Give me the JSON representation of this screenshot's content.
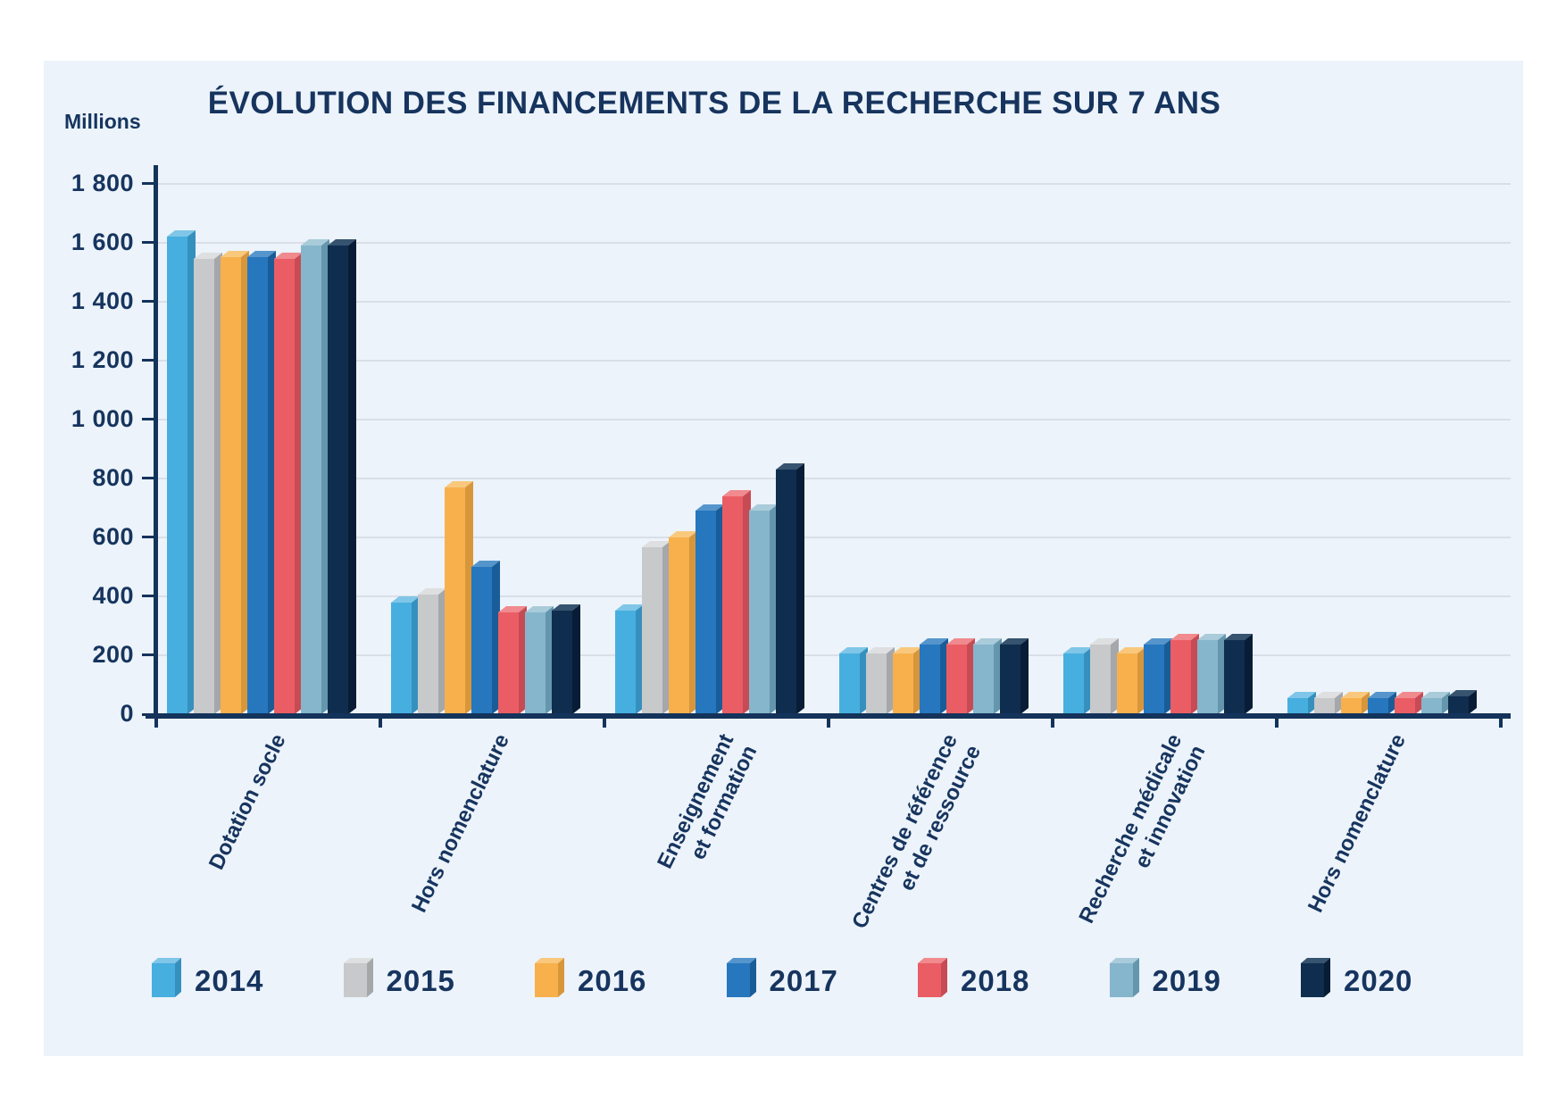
{
  "title": "ÉVOLUTION DES FINANCEMENTS DE LA RECHERCHE SUR 7 ANS",
  "chart_data": {
    "type": "bar",
    "title": "ÉVOLUTION DES FINANCEMENTS DE LA RECHERCHE SUR 7 ANS",
    "ylabel": "Millions",
    "ylim": [
      0,
      1800
    ],
    "y_tick_step": 200,
    "y_ticks": {
      "values": [
        0,
        200,
        400,
        600,
        800,
        1000,
        1200,
        1400,
        1600,
        1800
      ],
      "labels": [
        "0",
        "200",
        "400",
        "600",
        "800",
        "1 000",
        "1 200",
        "1 400",
        "1 600",
        "1 800"
      ]
    },
    "grid": true,
    "legend_position": "bottom",
    "categories": [
      "Dotation socle",
      "Hors nomenclature",
      "Enseignement et formation",
      "Centres de référence et de ressource",
      "Recherche médicale et innovation",
      "Hors nomenclature"
    ],
    "category_lines": [
      [
        "Dotation socle"
      ],
      [
        "Hors nomenclature"
      ],
      [
        "Enseignement",
        "et formation"
      ],
      [
        "Centres de référence",
        "et de ressource"
      ],
      [
        "Recherche médicale",
        "et innovation"
      ],
      [
        "Hors nomenclature"
      ]
    ],
    "series": [
      {
        "name": "2014",
        "color": "#47AFDF",
        "color_top": "#7FC6E8",
        "color_side": "#3690BD",
        "values": [
          1620,
          380,
          350,
          205,
          205,
          55
        ]
      },
      {
        "name": "2015",
        "color": "#C8C9CB",
        "color_top": "#DEDFE1",
        "color_side": "#A5A7AA",
        "values": [
          1545,
          405,
          565,
          205,
          235,
          55
        ]
      },
      {
        "name": "2016",
        "color": "#F7B04C",
        "color_top": "#F9C87D",
        "color_side": "#D8963B",
        "values": [
          1550,
          770,
          600,
          205,
          205,
          55
        ]
      },
      {
        "name": "2017",
        "color": "#2677BE",
        "color_top": "#5595CC",
        "color_side": "#1A5C98",
        "values": [
          1550,
          500,
          690,
          235,
          235,
          55
        ]
      },
      {
        "name": "2018",
        "color": "#EA5D64",
        "color_top": "#F08A8E",
        "color_side": "#C74B54",
        "values": [
          1545,
          345,
          740,
          235,
          250,
          55
        ]
      },
      {
        "name": "2019",
        "color": "#85B6CC",
        "color_top": "#A9CBDA",
        "color_side": "#6497AD",
        "values": [
          1590,
          345,
          690,
          235,
          250,
          55
        ]
      },
      {
        "name": "2020",
        "color": "#0F2D4F",
        "color_top": "#36536F",
        "color_side": "#081D35",
        "values": [
          1590,
          350,
          830,
          235,
          250,
          60
        ]
      }
    ]
  },
  "style": {
    "background": "#FFFFFF",
    "panel_background": "#ECF3FA",
    "text_color": "#16345E",
    "axis_color": "#14335B",
    "gridline_color": "#DADFE7"
  }
}
